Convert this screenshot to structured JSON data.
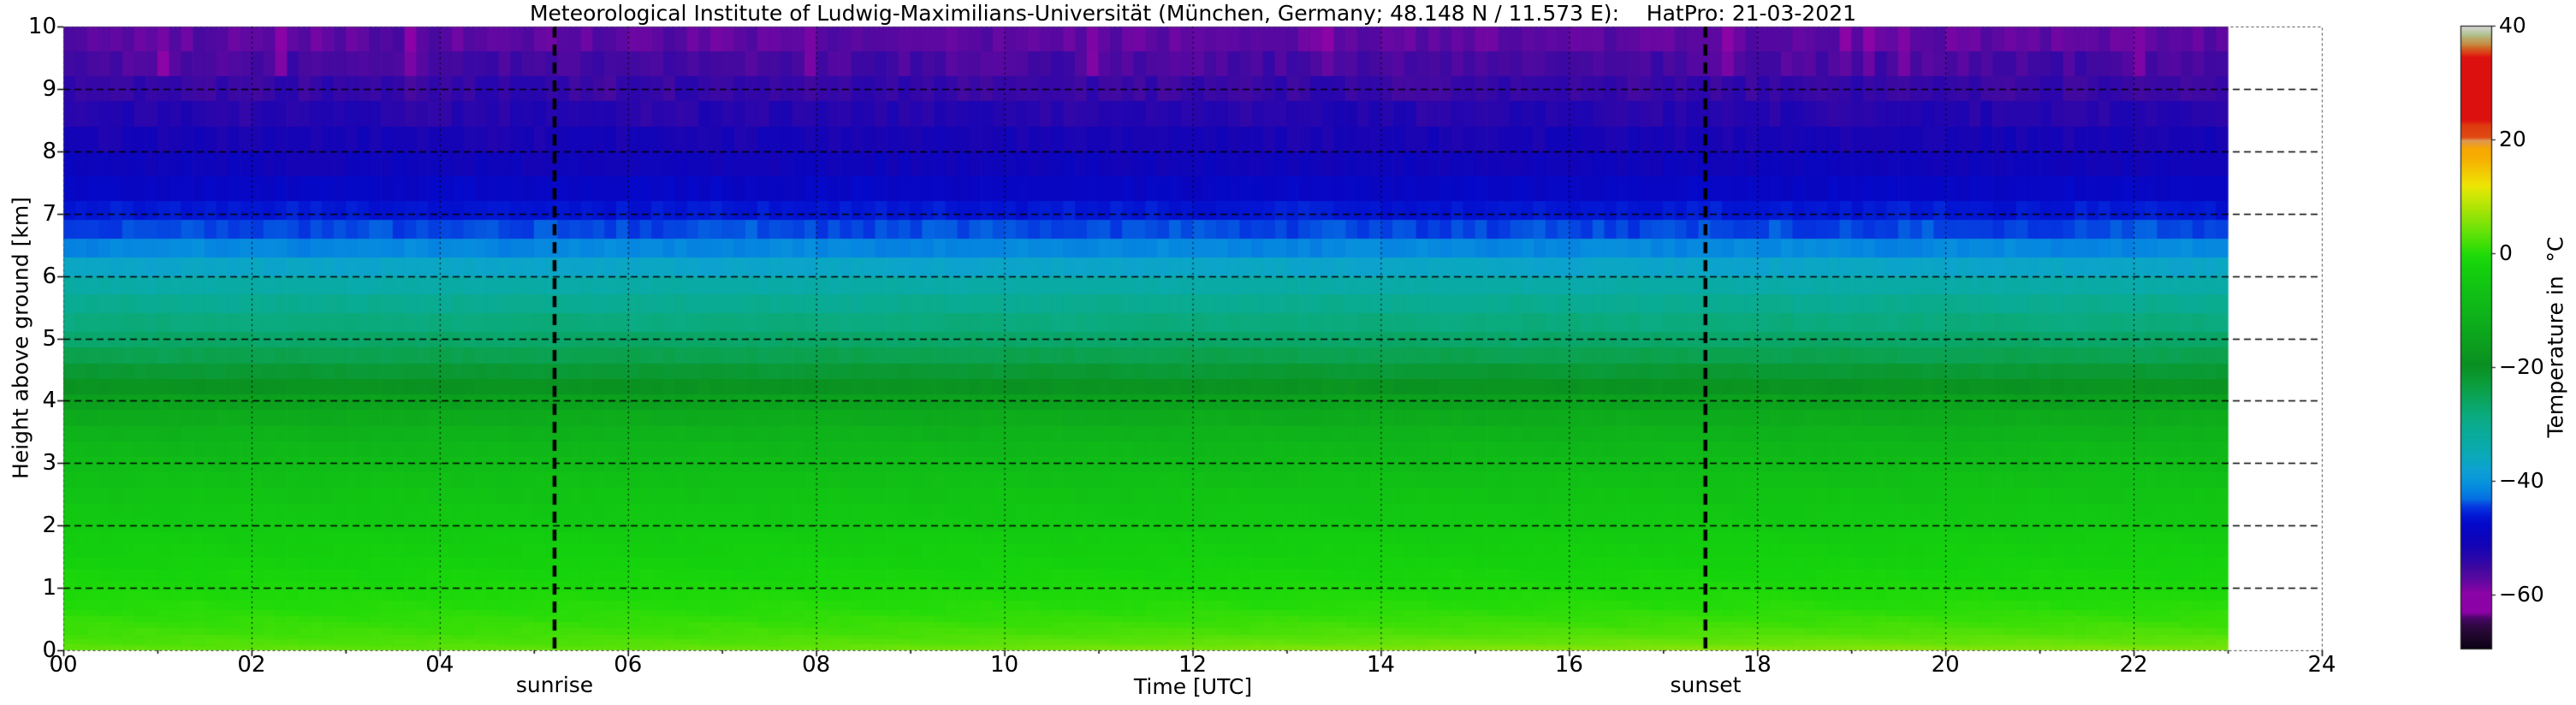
{
  "title": "Meteorological Institute of Ludwig-Maximilians-Universität (München, Germany; 48.148 N / 11.573 E):    HatPro: 21-03-2021",
  "axes": {
    "x": {
      "label": "Time [UTC]",
      "tick_labels": [
        "00",
        "02",
        "04",
        "06",
        "08",
        "10",
        "12",
        "14",
        "16",
        "18",
        "20",
        "22",
        "24"
      ],
      "tick_hours": [
        0,
        2,
        4,
        6,
        8,
        10,
        12,
        14,
        16,
        18,
        20,
        22,
        24
      ],
      "minor_tick_hours": [
        1,
        3,
        5,
        7,
        9,
        11,
        13,
        15,
        17,
        19,
        21,
        23
      ],
      "range_hours": [
        0,
        24
      ],
      "grid": "dashed"
    },
    "y": {
      "label": "Height above ground [km]",
      "tick_labels": [
        "0",
        "1",
        "2",
        "3",
        "4",
        "5",
        "6",
        "7",
        "8",
        "9",
        "10"
      ],
      "tick_values": [
        0,
        1,
        2,
        3,
        4,
        5,
        6,
        7,
        8,
        9,
        10
      ],
      "range_km": [
        0,
        10
      ],
      "grid": "dashed"
    }
  },
  "annotations": {
    "sunrise": {
      "label": "sunrise",
      "hour_utc": 5.22
    },
    "sunset": {
      "label": "sunset",
      "hour_utc": 17.45
    }
  },
  "colorbar": {
    "label": "Temperature in  °C",
    "tick_labels": [
      "40",
      "20",
      "0",
      "−20",
      "−40",
      "−60"
    ],
    "tick_values": [
      40,
      20,
      0,
      -20,
      -40,
      -60
    ],
    "range": [
      -69.4,
      40
    ]
  },
  "chart_data": {
    "type": "heatmap",
    "title": "Meteorological Institute of Ludwig-Maximilians-Universität (München, Germany; 48.148 N / 11.573 E):    HatPro: 21-03-2021",
    "xlabel": "Time [UTC]",
    "ylabel": "Height above ground [km]",
    "x_unit": "hours UTC",
    "x_range": [
      0,
      24
    ],
    "data_end_hour": 23.0,
    "time_step_hours": 0.125,
    "y_range_km": [
      0,
      10
    ],
    "sunrise_hour_utc": 5.22,
    "sunset_hour_utc": 17.45,
    "level_edges_km": [
      0,
      0.05,
      0.1,
      0.175,
      0.25,
      0.35,
      0.45,
      0.55,
      0.65,
      0.8,
      0.95,
      1.1,
      1.3,
      1.5,
      1.7,
      1.9,
      2.1,
      2.35,
      2.6,
      2.85,
      3.1,
      3.35,
      3.6,
      3.85,
      4.1,
      4.35,
      4.6,
      4.85,
      5.1,
      5.4,
      5.7,
      6,
      6.3,
      6.6,
      6.9,
      7.2,
      7.6,
      8,
      8.4,
      8.8,
      9.2,
      9.6,
      10
    ],
    "temperature_profile": {
      "heights_km": [
        0,
        0.1,
        0.25,
        0.5,
        0.75,
        1,
        1.3,
        1.6,
        1.9,
        2.2,
        2.5,
        2.8,
        3.1,
        3.4,
        3.7,
        4,
        4.25,
        4.5,
        4.75,
        5,
        5.3,
        5.6,
        5.9,
        6.2,
        6.5,
        6.8,
        7.1,
        7.4,
        7.8,
        8.2,
        8.6,
        9,
        9.4,
        9.7,
        10
      ],
      "temps_c": [
        3,
        2.2,
        1.5,
        0.7,
        -0.1,
        -1,
        -2,
        -3,
        -4,
        -5,
        -6.1,
        -7.3,
        -8.6,
        -10.2,
        -12.4,
        -15.6,
        -18.8,
        -22.2,
        -24.7,
        -26.6,
        -28.6,
        -30.8,
        -33.6,
        -37.6,
        -42,
        -44.5,
        -46.5,
        -48.5,
        -50.3,
        -51.6,
        -53,
        -54.4,
        -55.7,
        -56.8,
        -57.8
      ]
    },
    "surface_warming_c_by_hour": [
      [
        0,
        0.6
      ],
      [
        5,
        0.5
      ],
      [
        9,
        1.5
      ],
      [
        13,
        2.6
      ],
      [
        16,
        3.0
      ],
      [
        19,
        3.0
      ],
      [
        23,
        2.6
      ]
    ],
    "surface_warming_scale_height_km": 0.28,
    "colormap_stops": [
      [
        -69.5,
        "#0A0012"
      ],
      [
        -67.5,
        "#1C0628"
      ],
      [
        -65.5,
        "#2E0840"
      ],
      [
        -64,
        "#4A0668"
      ],
      [
        -63,
        "#8C02A6"
      ],
      [
        -59.5,
        "#8A04A6"
      ],
      [
        -57.5,
        "#6208A2"
      ],
      [
        -55.5,
        "#44099F"
      ],
      [
        -53.5,
        "#2A06AC"
      ],
      [
        -51.5,
        "#1604B4"
      ],
      [
        -49.5,
        "#0A05BE"
      ],
      [
        -47.5,
        "#0409CA"
      ],
      [
        -46,
        "#0318D4"
      ],
      [
        -44.5,
        "#0536E0"
      ],
      [
        -43,
        "#0570E2"
      ],
      [
        -41.5,
        "#0585E0"
      ],
      [
        -40,
        "#0895DB"
      ],
      [
        -38,
        "#0DA0D2"
      ],
      [
        -36,
        "#0AA8BE"
      ],
      [
        -33.5,
        "#09AAA8"
      ],
      [
        -31,
        "#09AB96"
      ],
      [
        -28.5,
        "#0BAB80"
      ],
      [
        -26,
        "#0AA562"
      ],
      [
        -23.5,
        "#0BA044"
      ],
      [
        -21.5,
        "#0A9830"
      ],
      [
        -19.5,
        "#0A8F22"
      ],
      [
        -16.5,
        "#0B9C1E"
      ],
      [
        -13.5,
        "#0CA81C"
      ],
      [
        -10.5,
        "#0EB31A"
      ],
      [
        -7.5,
        "#10BE16"
      ],
      [
        -4.5,
        "#12C911"
      ],
      [
        -2,
        "#15D30C"
      ],
      [
        0,
        "#22DB08"
      ],
      [
        2,
        "#46E007"
      ],
      [
        4,
        "#68E309"
      ],
      [
        6,
        "#8AE307"
      ],
      [
        8,
        "#ACE405"
      ],
      [
        10,
        "#CCE705"
      ],
      [
        12,
        "#EEE504"
      ],
      [
        14,
        "#F2CE03"
      ],
      [
        16.5,
        "#F6B102"
      ],
      [
        18.5,
        "#F7A702"
      ],
      [
        19.3,
        "#E89C30"
      ],
      [
        19.9,
        "#DF9A55"
      ],
      [
        20.4,
        "#E04C12"
      ],
      [
        22.5,
        "#DF3C10"
      ],
      [
        23.5,
        "#DD1010"
      ],
      [
        34.5,
        "#DD1010"
      ],
      [
        35.2,
        "#DC3814"
      ],
      [
        36.2,
        "#D06828"
      ],
      [
        36.8,
        "#C48C44"
      ],
      [
        37.8,
        "#BCA868"
      ],
      [
        38.4,
        "#AEC08E"
      ],
      [
        39.2,
        "#C6CCB4"
      ],
      [
        40,
        "#D8D8D8"
      ]
    ]
  }
}
